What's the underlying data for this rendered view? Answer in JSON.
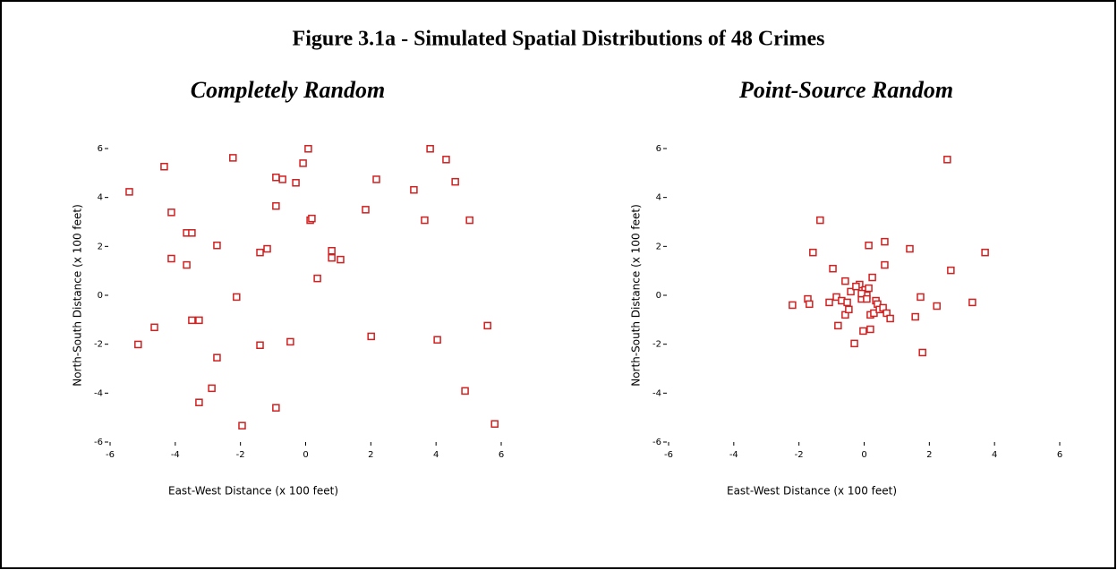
{
  "title": "Figure 3.1a - Simulated Spatial Distributions of 48 Crimes",
  "chart_data": [
    {
      "type": "scatter",
      "title": "Completely Random",
      "xlabel": "East-West Distance (x 100 feet)",
      "ylabel": "North-South Distance (x 100 feet)",
      "color": "#d02020",
      "xlim": [
        -6,
        6
      ],
      "ylim": [
        -6,
        6
      ],
      "xticks": [
        -6,
        -4,
        -2,
        0,
        2,
        4,
        6
      ],
      "yticks": [
        -6,
        -4,
        -2,
        0,
        2,
        4,
        6
      ],
      "series": [
        {
          "x": [
            -5.41,
            -5.14,
            -4.64,
            -4.34,
            -4.12,
            -4.12,
            -3.65,
            -3.65,
            -3.49,
            -3.49,
            -3.27,
            -3.27,
            -2.88,
            -2.72,
            -2.72,
            -2.23,
            -2.12,
            -1.95,
            -1.4,
            -1.4,
            -1.18,
            -0.91,
            -0.91,
            -0.91,
            -0.71,
            -0.47,
            -0.3,
            -0.08,
            0.08,
            0.14,
            0.19,
            0.36,
            0.8,
            0.8,
            1.07,
            1.84,
            2.01,
            2.17,
            3.32,
            3.65,
            3.82,
            4.04,
            4.31,
            4.59,
            4.89,
            5.03,
            5.58,
            5.8
          ],
          "values": [
            4.23,
            -2.01,
            -1.31,
            5.26,
            3.39,
            1.5,
            1.24,
            2.55,
            2.55,
            -1.02,
            -1.02,
            -4.38,
            -3.8,
            2.04,
            -2.55,
            5.62,
            -0.07,
            -5.33,
            1.75,
            -2.04,
            1.9,
            4.82,
            3.65,
            -4.6,
            4.74,
            -1.9,
            4.6,
            5.4,
            5.99,
            3.07,
            3.14,
            0.69,
            1.82,
            1.53,
            1.46,
            3.5,
            -1.68,
            4.74,
            4.31,
            3.07,
            5.99,
            -1.82,
            5.55,
            4.64,
            -3.91,
            3.07,
            -1.24,
            -5.26
          ]
        }
      ]
    },
    {
      "type": "scatter",
      "title": "Point-Source Random",
      "xlabel": "East-West Distance (x 100 feet)",
      "ylabel": "North-South Distance (x 100 feet)",
      "color": "#d02020",
      "xlim": [
        -6,
        6
      ],
      "ylim": [
        -6,
        6
      ],
      "xticks": [
        -6,
        -4,
        -2,
        0,
        2,
        4,
        6
      ],
      "yticks": [
        -6,
        -4,
        -2,
        0,
        2,
        4,
        6
      ],
      "series": [
        {
          "x": [
            -2.2,
            -1.73,
            -1.68,
            -1.57,
            -1.35,
            -1.07,
            -0.96,
            -0.85,
            -0.8,
            -0.69,
            -0.58,
            -0.58,
            -0.52,
            -0.47,
            -0.41,
            -0.3,
            -0.14,
            -0.08,
            -0.03,
            -0.03,
            0.03,
            0.08,
            0.14,
            0.14,
            0.19,
            0.19,
            0.25,
            0.3,
            0.36,
            0.41,
            0.47,
            0.58,
            0.63,
            0.63,
            0.69,
            0.8,
            1.4,
            1.57,
            1.73,
            1.79,
            2.23,
            2.55,
            2.66,
            3.32,
            3.71,
            -0.08,
            0.08,
            -0.25
          ],
          "values": [
            -0.4,
            -0.15,
            -0.36,
            1.75,
            3.07,
            -0.29,
            1.09,
            -0.07,
            -1.24,
            -0.22,
            0.58,
            -0.8,
            -0.29,
            -0.58,
            0.15,
            -1.97,
            0.44,
            -0.15,
            -1.46,
            0.07,
            0.22,
            0,
            2.04,
            0.29,
            -0.8,
            -1.39,
            0.73,
            -0.73,
            -0.22,
            -0.36,
            -0.58,
            -0.51,
            1.24,
            2.19,
            -0.73,
            -0.95,
            1.9,
            -0.88,
            -0.07,
            -2.34,
            -0.44,
            5.55,
            1.02,
            -0.29,
            1.75,
            0.07,
            -0.15,
            0.36
          ]
        }
      ]
    }
  ]
}
